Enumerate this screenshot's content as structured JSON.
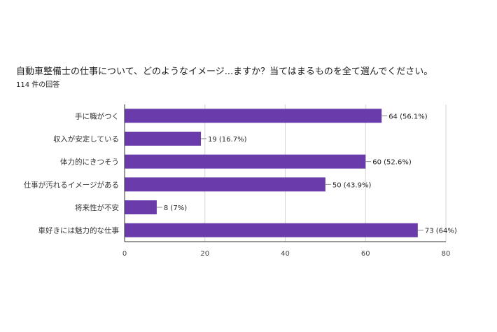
{
  "chart_data": {
    "type": "bar",
    "orientation": "horizontal",
    "title": "自動車整備士の仕事について、どのようなイメージ...ますか？当てはまるものを全て選んでください。",
    "subtitle": "114 件の回答",
    "categories": [
      "手に職がつく",
      "収入が安定している",
      "体力的にきつそう",
      "仕事が汚れるイメージがある",
      "将来性が不安",
      "車好きには魅力的な仕事"
    ],
    "values": [
      64,
      19,
      60,
      50,
      8,
      73
    ],
    "data_labels": [
      "64 (56.1%)",
      "19 (16.7%)",
      "60 (52.6%)",
      "50 (43.9%)",
      "8 (7%)",
      "73 (64%)"
    ],
    "x_ticks": [
      "0",
      "20",
      "40",
      "60",
      "80"
    ],
    "xlim": [
      0,
      80
    ],
    "grid": true,
    "bar_color": "#6a3bab"
  }
}
